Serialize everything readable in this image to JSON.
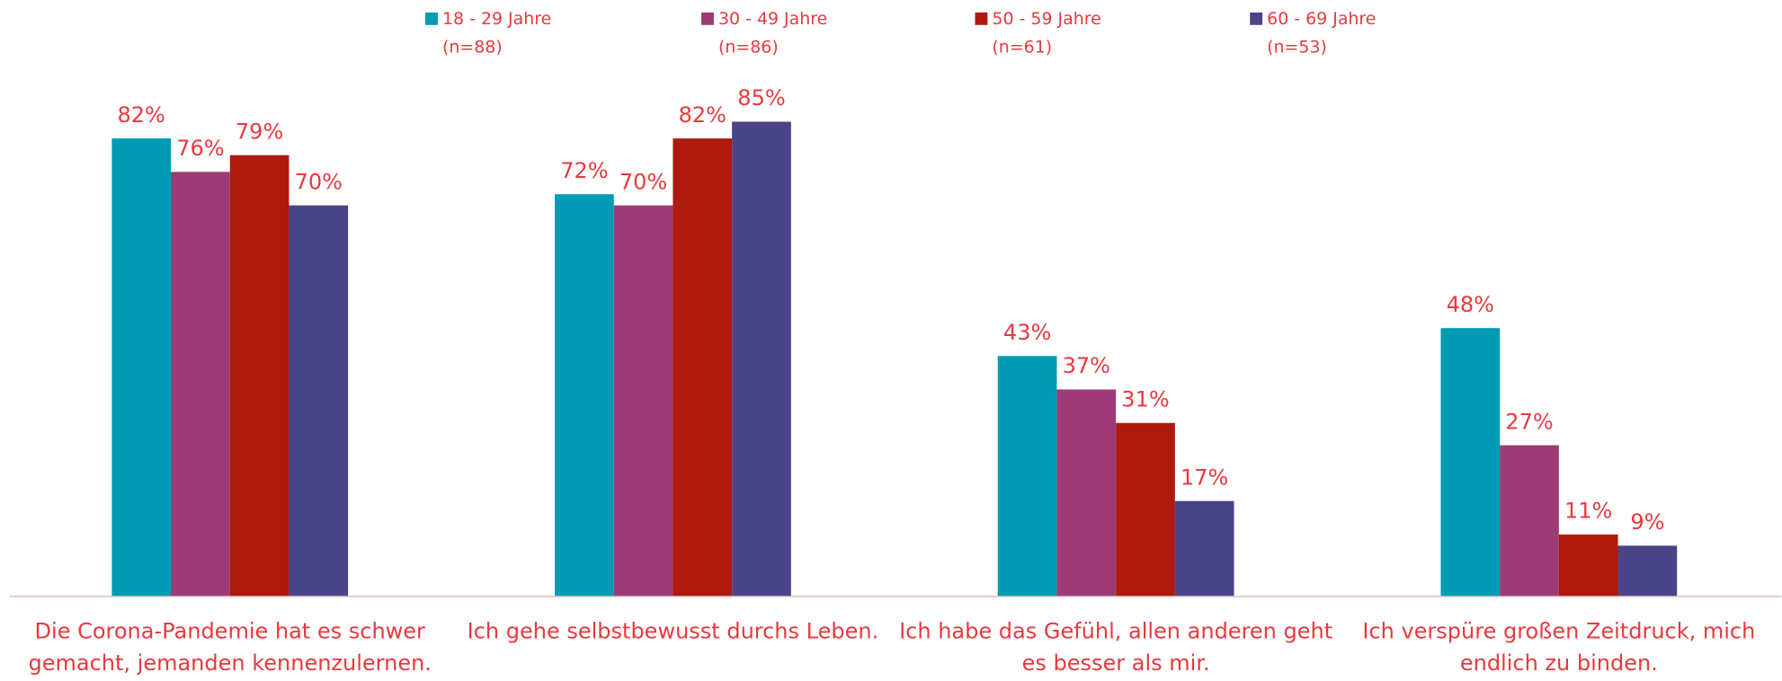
{
  "chart_data": {
    "type": "bar",
    "categories": [
      [
        "Die Corona-Pandemie hat es schwer",
        "gemacht, jemanden kennenzulernen."
      ],
      [
        "Ich gehe selbstbewusst durchs Leben."
      ],
      [
        "Ich habe das Gefühl, allen anderen geht",
        "es besser als mir."
      ],
      [
        "Ich verspüre großen Zeitdruck, mich",
        "endlich zu binden."
      ]
    ],
    "series": [
      {
        "name": "18 - 29 Jahre",
        "note": "(n=88)",
        "color": "#009bb4",
        "values": [
          82,
          72,
          43,
          48
        ],
        "value_labels": [
          "82%",
          "72%",
          "43%",
          "48%"
        ]
      },
      {
        "name": "30 - 49 Jahre",
        "note": "(n=86)",
        "color": "#9e3a75",
        "values": [
          76,
          70,
          37,
          27
        ],
        "value_labels": [
          "76%",
          "70%",
          "37%",
          "27%"
        ]
      },
      {
        "name": "50 - 59 Jahre",
        "note": "(n=61)",
        "color": "#ae1a0e",
        "values": [
          79,
          82,
          31,
          11
        ],
        "value_labels": [
          "79%",
          "82%",
          "31%",
          "11%"
        ]
      },
      {
        "name": "60 - 69 Jahre",
        "note": "(n=53)",
        "color": "#4a4488",
        "values": [
          70,
          85,
          17,
          9
        ],
        "value_labels": [
          "70%",
          "85%",
          "17%",
          "9%"
        ]
      }
    ],
    "ylim": [
      0,
      100
    ],
    "grid": false,
    "legend": "top"
  }
}
